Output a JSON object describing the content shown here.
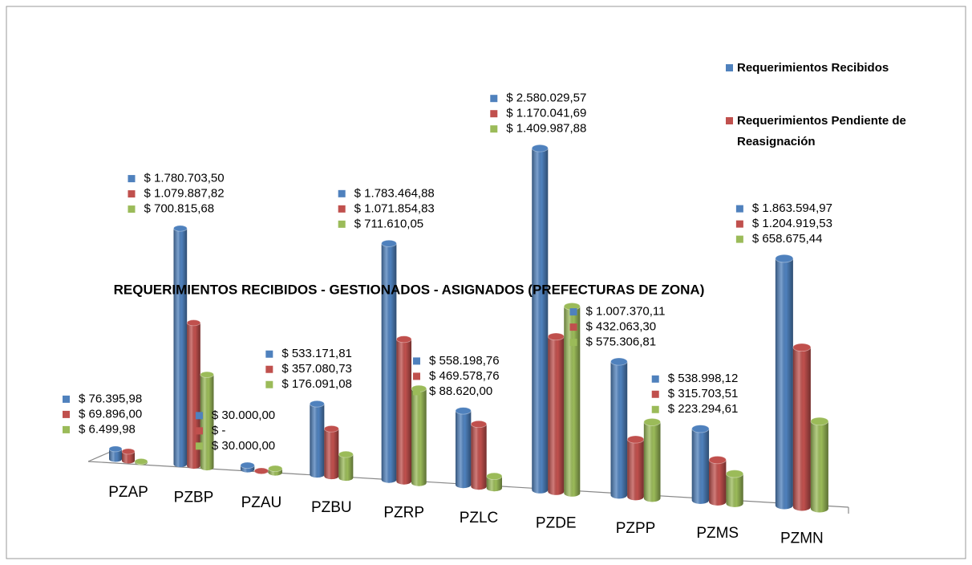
{
  "chart_data": {
    "type": "bar",
    "title": "REQUERIMIENTOS RECIBIDOS - GESTIONADOS - ASIGNADOS (PREFECTURAS DE ZONA)",
    "categories": [
      "PZAP",
      "PZBP",
      "PZAU",
      "PZBU",
      "PZRP",
      "PZLC",
      "PZDE",
      "PZPP",
      "PZMS",
      "PZMN"
    ],
    "legend": "top-right",
    "series": [
      {
        "name": "Requerimientos Recibidos",
        "color": "#4f81bd",
        "values": [
          76395.98,
          1780703.5,
          30000.0,
          533171.81,
          1783464.88,
          558198.76,
          2580029.57,
          1007370.11,
          538998.12,
          1863594.97
        ],
        "value_labels": [
          "$ 76.395,98",
          "$ 1.780.703,50",
          "$ 30.000,00",
          "$ 533.171,81",
          "$ 1.783.464,88",
          "$ 558.198,76",
          "$ 2.580.029,57",
          "$ 1.007.370,11",
          "$ 538.998,12",
          "$ 1.863.594,97"
        ]
      },
      {
        "name": "Requerimientos Pendiente de Reasignación",
        "color": "#c0504d",
        "values": [
          69896.0,
          1079887.82,
          0,
          357080.73,
          1071854.83,
          469578.76,
          1170041.69,
          432063.3,
          315703.51,
          1204919.53
        ],
        "value_labels": [
          "$ 69.896,00",
          "$ 1.079.887,82",
          "$ -",
          "$ 357.080,73",
          "$ 1.071.854,83",
          "$ 469.578,76",
          "$ 1.170.041,69",
          "$ 432.063,30",
          "$ 315.703,51",
          "$ 1.204.919,53"
        ]
      },
      {
        "color": "#9bbb59",
        "values": [
          6499.98,
          700815.68,
          30000.0,
          176091.08,
          711610.05,
          88620.0,
          1409987.88,
          575306.81,
          223294.61,
          658675.44
        ],
        "value_labels": [
          "$ 6.499,98",
          "$ 700.815,68",
          "$ 30.000,00",
          "$ 176.091,08",
          "$ 711.610,05",
          "$ 88.620,00",
          "$ 1.409.987,88",
          "$ 575.306,81",
          "$ 223.294,61",
          "$ 658.675,44"
        ]
      }
    ]
  }
}
